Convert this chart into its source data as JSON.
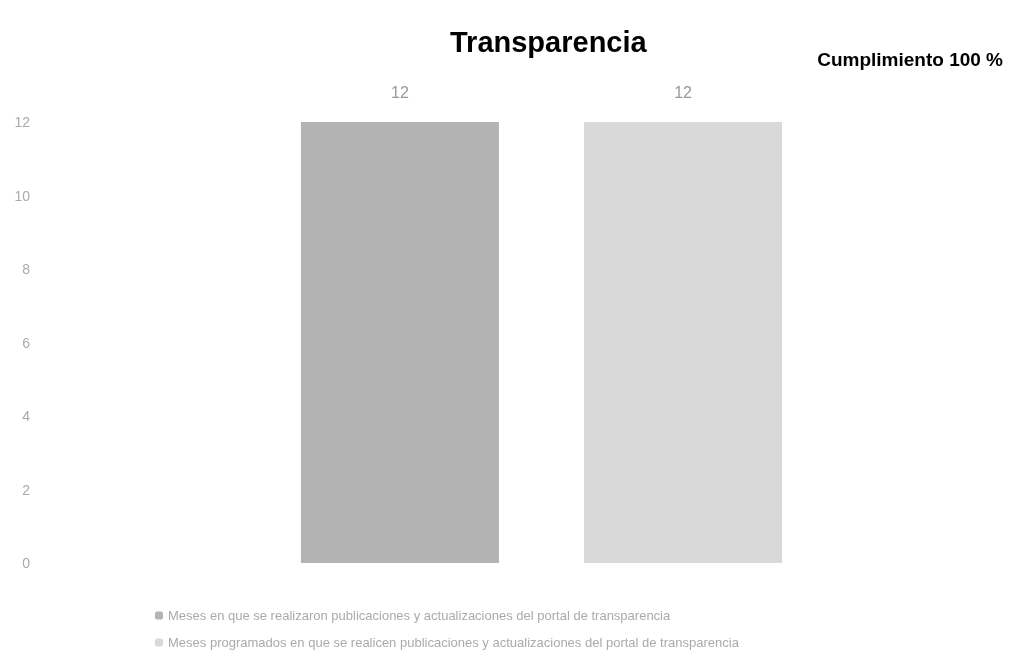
{
  "chart_data": {
    "type": "bar",
    "title": "Transparencia",
    "categories": [
      null
    ],
    "series": [
      {
        "name": "Meses en que se realizaron publicaciones y actualizaciones del portal de transparencia",
        "color": "#b3b3b3",
        "values": [
          12
        ]
      },
      {
        "name": "Meses programados en que se realicen publicaciones y actualizaciones del portal de transparencia",
        "color": "#d9d9d9",
        "values": [
          12
        ]
      }
    ],
    "ylim": [
      0,
      12
    ],
    "yticks": [
      0,
      2,
      4,
      6,
      8,
      10,
      12
    ],
    "grid": false,
    "legend": "bottom",
    "data_labels": true,
    "annotations": [
      "Cumplimiento 100 %"
    ]
  }
}
